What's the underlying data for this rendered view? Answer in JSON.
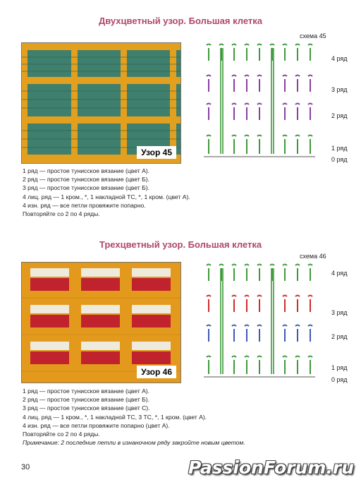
{
  "pattern45": {
    "title": "Двухцветный узор. Большая клетка",
    "swatch_label": "Узор 45",
    "scheme_label": "схема 45",
    "rows": [
      "4 ряд",
      "3 ряд",
      "2 ряд",
      "1 ряд",
      "0 ряд"
    ],
    "colors": {
      "yarn_main": "#3f7f6d",
      "yarn_grid": "#e3a01f",
      "row4": "#3d9a3a",
      "row3": "#8a3ea0",
      "row2": "#8a3ea0",
      "row1": "#3d9a3a"
    },
    "instructions": [
      "1 ряд — простое тунисское вязание (цвет А).",
      "2 ряд — простое тунисское вязание (цвет Б).",
      "3 ряд — простое тунисское вязание (цвет Б).",
      "4 лиц. ряд — 1 кром., *, 1 накладной ТС, *, 1 кром. (цвет А).",
      "4 изн. ряд — все петли провяжите попарно.",
      "Повторяйте со 2 по 4 ряды."
    ]
  },
  "pattern46": {
    "title": "Трехцветный узор. Большая клетка",
    "swatch_label": "Узор 46",
    "scheme_label": "схема 46",
    "rows": [
      "4 ряд",
      "3 ряд",
      "2 ряд",
      "1 ряд",
      "0 ряд"
    ],
    "colors": {
      "yarn_base": "#e39a1c",
      "yarn_red": "#c0222e",
      "yarn_white": "#eeeadd",
      "row4": "#3d9a3a",
      "row3": "#d02a2a",
      "row2": "#3a5bb0",
      "row1": "#3d9a3a"
    },
    "instructions": [
      "1 ряд — простое тунисское вязание (цвет А).",
      "2 ряд — простое тунисское вязание (цвет Б).",
      "3 ряд — простое тунисское вязание (цвет С).",
      "4 лиц. ряд — 1 кром., *, 1 накладной ТС, 3 ТС, *, 1 кром. (цвет А).",
      "4 изн. ряд — все петли провяжите попарно (цвет А).",
      "Повторяйте со 2 по 4 ряды."
    ],
    "note": "Примечание: 2 последние  петли в изнаночном ряду закройте новым цветом."
  },
  "page_number": "30",
  "watermark": "PassionForum.ru"
}
